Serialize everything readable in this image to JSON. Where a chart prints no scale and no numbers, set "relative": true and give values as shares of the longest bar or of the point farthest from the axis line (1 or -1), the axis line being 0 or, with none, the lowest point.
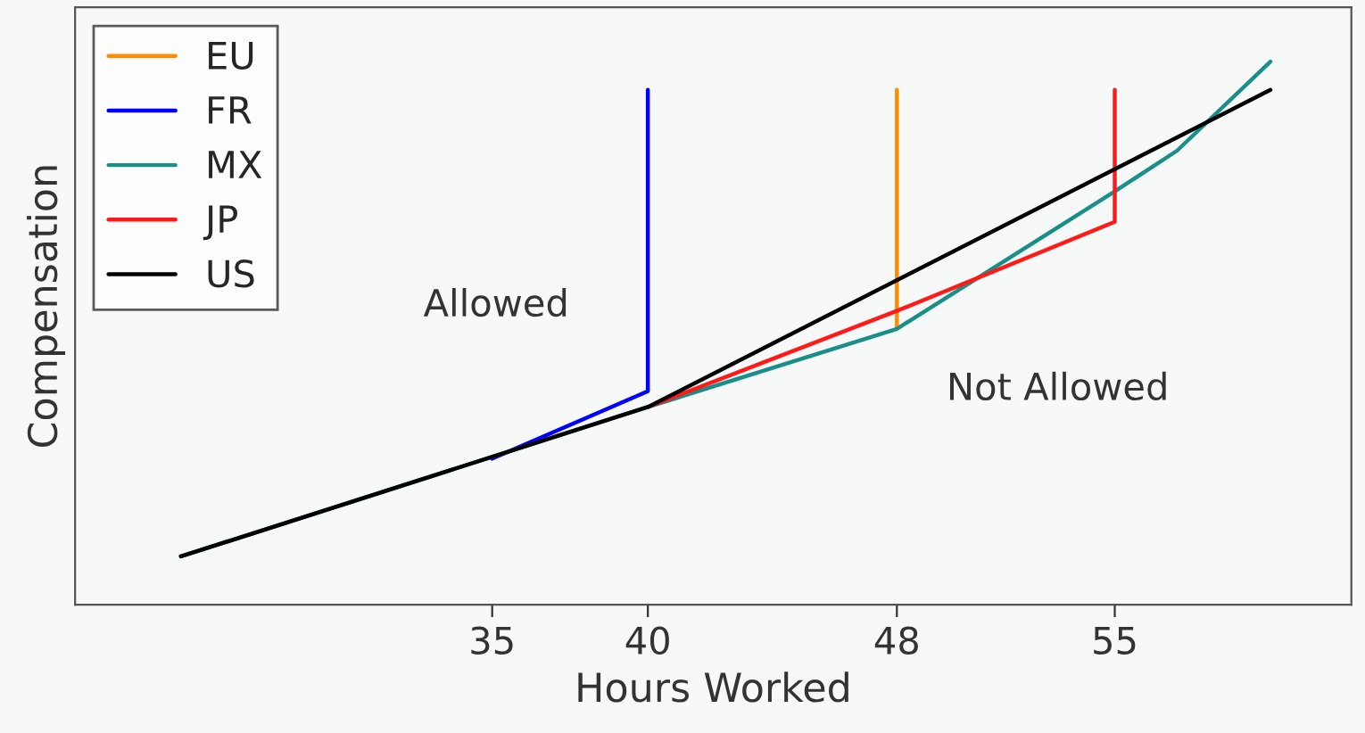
{
  "chart_data": {
    "type": "line",
    "relative": true,
    "xlabel": "Hours Worked",
    "ylabel": "Compensation",
    "xlim": [
      21.6,
      62.6
    ],
    "xticks": [
      35,
      40,
      48,
      55
    ],
    "legend": "top left",
    "grid": false,
    "annotations": [
      "Allowed",
      "Not Allowed"
    ],
    "series": [
      {
        "name": "EU",
        "color": "#ff8c00",
        "x": [
          48,
          48
        ],
        "values": [
          0.508,
          0.948
        ]
      },
      {
        "name": "FR",
        "color": "#0000ff",
        "x": [
          35,
          40,
          40
        ],
        "values": [
          0.269,
          0.393,
          0.948
        ]
      },
      {
        "name": "MX",
        "color": "#1a8f8a",
        "x": [
          25,
          40,
          48,
          55,
          57,
          60
        ],
        "values": [
          0.089,
          0.364,
          0.508,
          0.761,
          0.836,
          1.0
        ]
      },
      {
        "name": "JP",
        "color": "#ff1a1a",
        "x": [
          40,
          48,
          55,
          55
        ],
        "values": [
          0.364,
          0.541,
          0.705,
          0.948
        ]
      },
      {
        "name": "US",
        "color": "#000000",
        "x": [
          25,
          40,
          60
        ],
        "values": [
          0.089,
          0.364,
          0.948
        ]
      }
    ]
  }
}
